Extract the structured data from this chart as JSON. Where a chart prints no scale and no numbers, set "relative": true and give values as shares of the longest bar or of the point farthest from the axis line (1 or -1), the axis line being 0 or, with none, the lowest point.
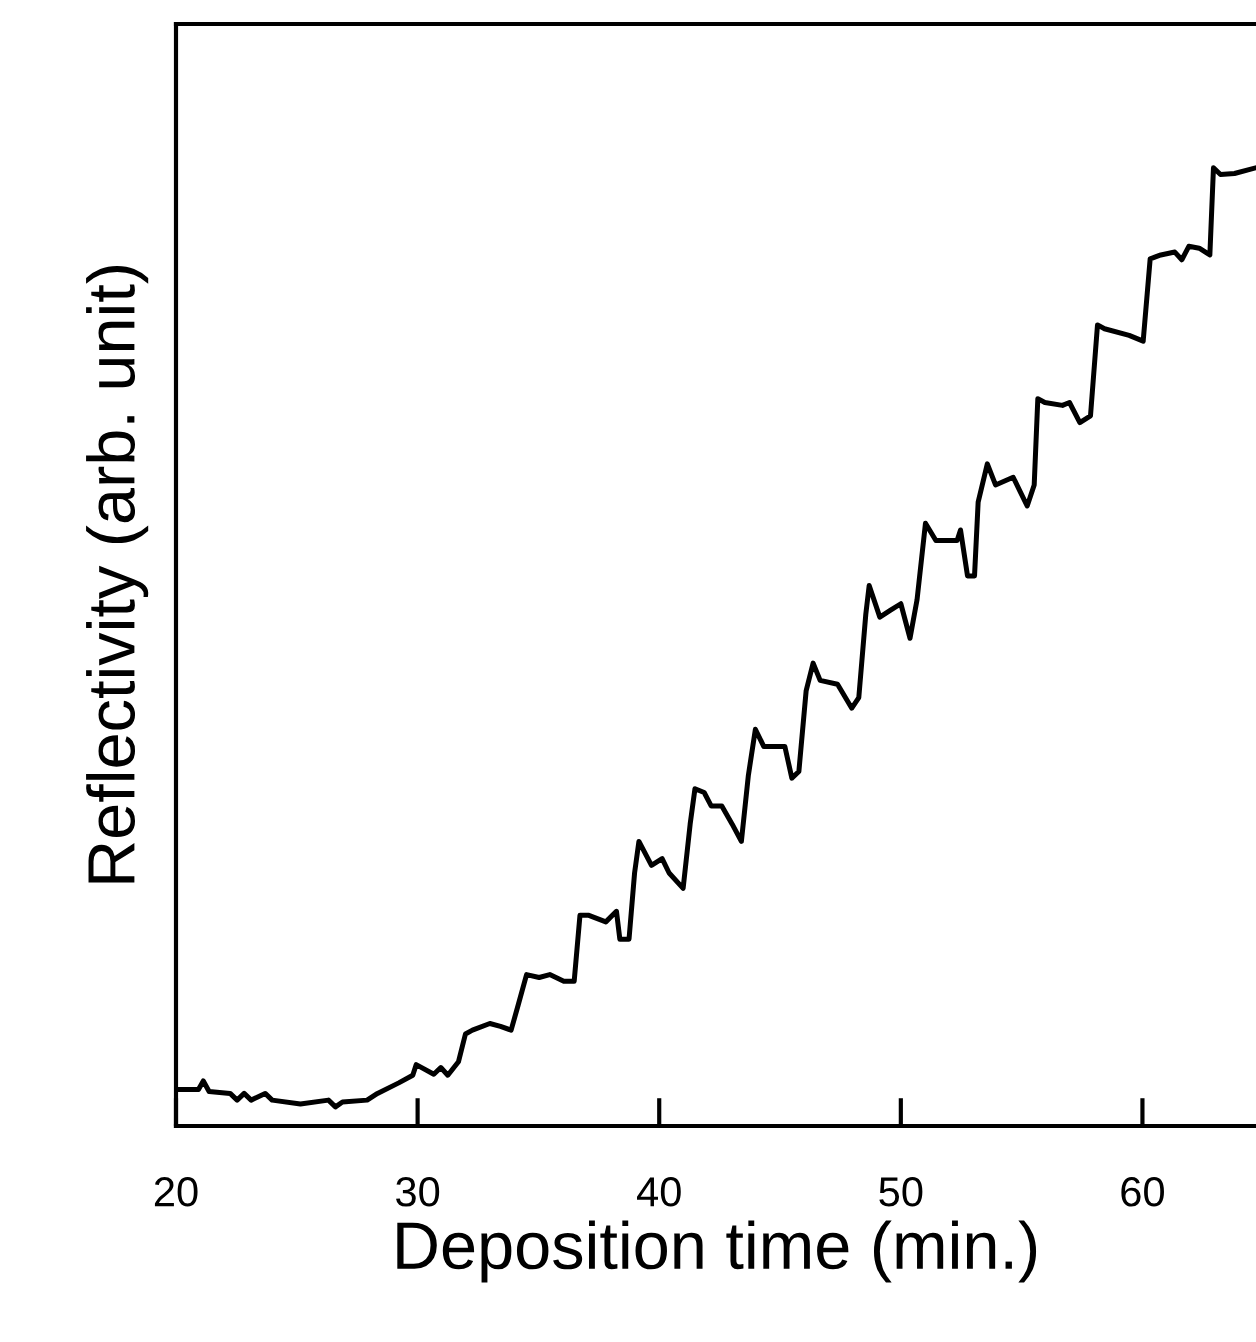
{
  "chart_data": {
    "type": "line",
    "xlabel": "Deposition time (min.)",
    "ylabel": "Reflectivity (arb. unit)",
    "relative": true,
    "xlim": [
      20,
      64.7
    ],
    "xticks": [
      20,
      30,
      40,
      50,
      60
    ],
    "grid": false,
    "legend": false,
    "marker": "none",
    "line_style": "solid",
    "series": [
      {
        "color": "#000000",
        "x": [
          20.0,
          20.93,
          21.13,
          21.37,
          22.24,
          22.53,
          22.82,
          23.11,
          23.69,
          23.98,
          25.15,
          26.31,
          26.6,
          26.89,
          27.91,
          28.34,
          29.22,
          29.8,
          29.94,
          30.67,
          30.96,
          31.25,
          31.69,
          31.98,
          32.27,
          32.99,
          33.43,
          33.87,
          34.16,
          34.51,
          35.03,
          35.47,
          36.05,
          36.48,
          36.72,
          37.06,
          37.79,
          38.23,
          38.37,
          38.75,
          38.98,
          39.16,
          39.68,
          40.12,
          40.41,
          40.99,
          41.28,
          41.48,
          41.86,
          42.15,
          42.59,
          43.02,
          43.4,
          43.69,
          43.98,
          44.33,
          45.2,
          45.49,
          45.78,
          46.08,
          46.37,
          46.66,
          47.38,
          47.97,
          48.26,
          48.55,
          48.69,
          49.13,
          49.56,
          50.0,
          50.38,
          50.67,
          51.02,
          51.45,
          52.33,
          52.47,
          52.76,
          53.05,
          53.2,
          53.58,
          53.92,
          54.65,
          54.94,
          55.23,
          55.52,
          55.67,
          55.96,
          56.69,
          56.98,
          57.41,
          57.85,
          58.14,
          58.43,
          59.45,
          60.03,
          60.32,
          60.76,
          61.34,
          61.63,
          61.92,
          62.35,
          62.79,
          62.94,
          63.23,
          63.81,
          64.7
        ],
        "values": [
          0.038,
          0.038,
          0.047,
          0.036,
          0.034,
          0.027,
          0.034,
          0.027,
          0.034,
          0.027,
          0.023,
          0.027,
          0.02,
          0.025,
          0.027,
          0.034,
          0.045,
          0.053,
          0.064,
          0.054,
          0.061,
          0.053,
          0.067,
          0.096,
          0.1,
          0.107,
          0.104,
          0.1,
          0.126,
          0.158,
          0.155,
          0.158,
          0.151,
          0.151,
          0.22,
          0.22,
          0.213,
          0.224,
          0.195,
          0.195,
          0.264,
          0.297,
          0.272,
          0.279,
          0.264,
          0.248,
          0.315,
          0.352,
          0.348,
          0.334,
          0.334,
          0.315,
          0.297,
          0.366,
          0.414,
          0.396,
          0.396,
          0.363,
          0.37,
          0.454,
          0.483,
          0.465,
          0.461,
          0.436,
          0.447,
          0.534,
          0.564,
          0.531,
          0.538,
          0.545,
          0.509,
          0.549,
          0.629,
          0.611,
          0.611,
          0.622,
          0.574,
          0.574,
          0.651,
          0.691,
          0.669,
          0.677,
          0.662,
          0.647,
          0.669,
          0.759,
          0.755,
          0.752,
          0.755,
          0.734,
          0.741,
          0.836,
          0.832,
          0.825,
          0.819,
          0.905,
          0.909,
          0.912,
          0.904,
          0.918,
          0.916,
          0.909,
          1.0,
          0.993,
          0.994,
          1.0
        ]
      }
    ]
  }
}
